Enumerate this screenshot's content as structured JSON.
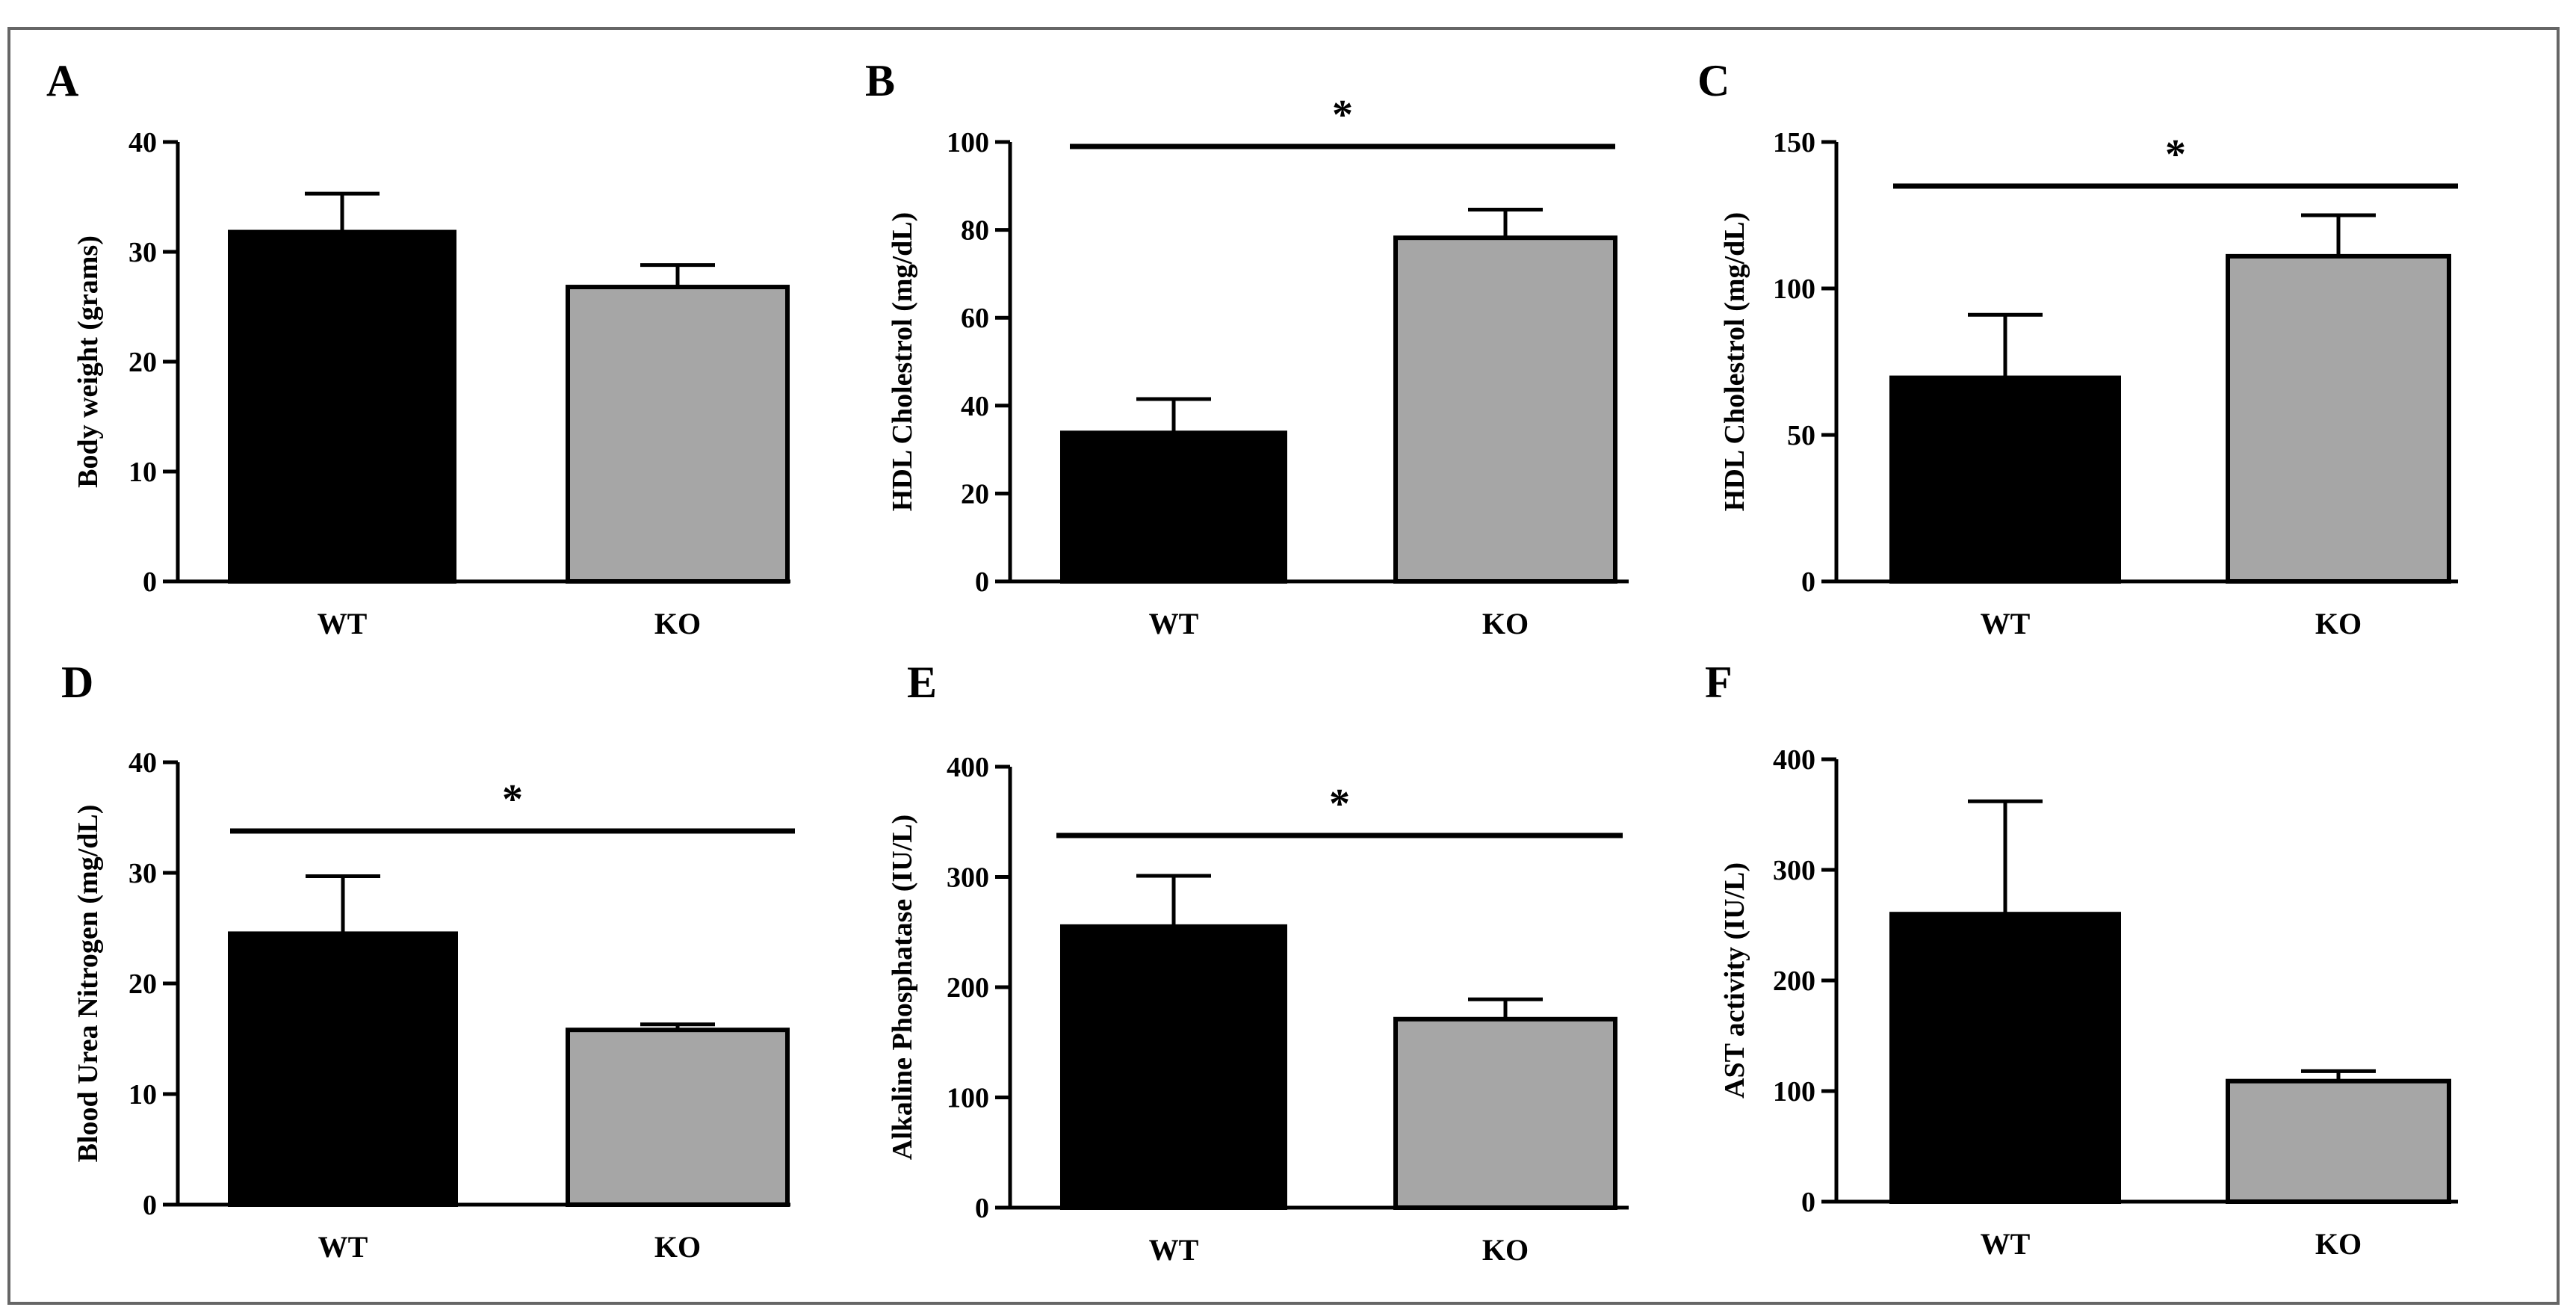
{
  "chart_data": [
    {
      "panel": "A",
      "type": "bar",
      "categories": [
        "WT",
        "KO"
      ],
      "values": [
        31.8,
        26.8
      ],
      "errors": [
        3.5,
        2.0
      ],
      "colors": [
        "#000000",
        "#a6a6a6"
      ],
      "ylabel": "Body weight (grams)",
      "ylim": [
        0,
        40
      ],
      "yticks": [
        0,
        10,
        20,
        30,
        40
      ],
      "significance": null
    },
    {
      "panel": "B",
      "type": "bar",
      "categories": [
        "WT",
        "KO"
      ],
      "values": [
        33.8,
        78.2
      ],
      "errors": [
        7.7,
        6.4
      ],
      "colors": [
        "#000000",
        "#a6a6a6"
      ],
      "ylabel": "HDL Cholestrol (mg/dL)",
      "ylim": [
        0,
        100
      ],
      "yticks": [
        0,
        20,
        40,
        60,
        80,
        100
      ],
      "significance": "*"
    },
    {
      "panel": "C",
      "type": "bar",
      "categories": [
        "WT",
        "KO"
      ],
      "values": [
        69.5,
        111.0
      ],
      "errors": [
        21.5,
        14.0
      ],
      "colors": [
        "#000000",
        "#a6a6a6"
      ],
      "ylabel": "HDL Cholestrol (mg/dL)",
      "ylim": [
        0,
        150
      ],
      "yticks": [
        0,
        50,
        100,
        150
      ],
      "significance": "*"
    },
    {
      "panel": "D",
      "type": "bar",
      "categories": [
        "WT",
        "KO"
      ],
      "values": [
        24.5,
        15.8
      ],
      "errors": [
        5.2,
        0.5
      ],
      "colors": [
        "#000000",
        "#a6a6a6"
      ],
      "ylabel": "Blood Urea Nitrogen (mg/dL)",
      "ylim": [
        0,
        40
      ],
      "yticks": [
        0,
        10,
        20,
        30,
        40
      ],
      "significance": "*"
    },
    {
      "panel": "E",
      "type": "bar",
      "categories": [
        "WT",
        "KO"
      ],
      "values": [
        255,
        171
      ],
      "errors": [
        46,
        18
      ],
      "colors": [
        "#000000",
        "#a6a6a6"
      ],
      "ylabel": "Alkaline Phosphatase (IU/L)",
      "ylim": [
        0,
        400
      ],
      "yticks": [
        0,
        100,
        200,
        300,
        400
      ],
      "significance": "*"
    },
    {
      "panel": "F",
      "type": "bar",
      "categories": [
        "WT",
        "KO"
      ],
      "values": [
        260,
        109
      ],
      "errors": [
        102,
        9
      ],
      "colors": [
        "#000000",
        "#a6a6a6"
      ],
      "ylabel": "AST activity (IU/L)",
      "ylim": [
        0,
        400
      ],
      "yticks": [
        0,
        100,
        200,
        300,
        400
      ],
      "significance": null
    }
  ]
}
